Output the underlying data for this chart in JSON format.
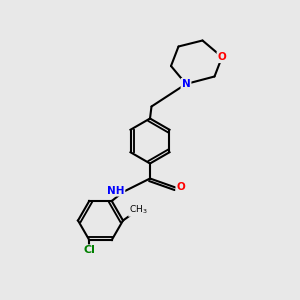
{
  "bg_color": "#e8e8e8",
  "bond_color": "#000000",
  "bond_lw": 1.5,
  "atom_colors": {
    "N": "#0000ff",
    "O": "#ff0000",
    "Cl": "#008000",
    "C": "#000000",
    "H": "#404040"
  },
  "font_size": 7.5,
  "font_size_small": 6.5
}
